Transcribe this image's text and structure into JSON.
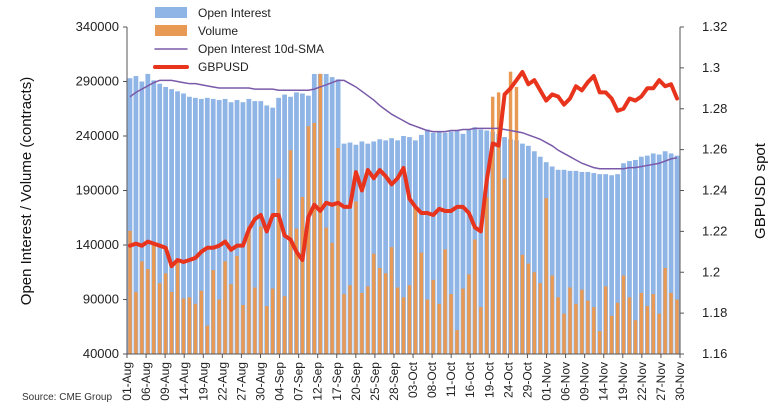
{
  "chart_data": {
    "type": "bar",
    "source": "Source: CME Group",
    "y_left_label": "Open Interest / Volume (contracts)",
    "y_right_label": "GBPUSD spot",
    "y_left_range": [
      40000,
      340000
    ],
    "y_left_ticks": [
      "340000",
      "290000",
      "240000",
      "190000",
      "140000",
      "90000",
      "40000"
    ],
    "y_right_range": [
      1.16,
      1.32
    ],
    "y_right_ticks": [
      "1.32",
      "1.3",
      "1.28",
      "1.26",
      "1.24",
      "1.22",
      "1.2",
      "1.18",
      "1.16"
    ],
    "x_tick_labels": [
      "01-Aug",
      "06-Aug",
      "09-Aug",
      "14-Aug",
      "19-Aug",
      "22-Aug",
      "27-Aug",
      "30-Aug",
      "04-Sep",
      "07-Sep",
      "12-Sep",
      "17-Sep",
      "20-Sep",
      "25-Sep",
      "28-Sep",
      "03-Oct",
      "08-Oct",
      "11-Oct",
      "16-Oct",
      "19-Oct",
      "24-Oct",
      "29-Oct",
      "01-Nov",
      "06-Nov",
      "09-Nov",
      "14-Nov",
      "19-Nov",
      "22-Nov",
      "27-Nov",
      "30-Nov"
    ],
    "legend": [
      "Open Interest",
      "Volume",
      "Open Interest 10d-SMA",
      "GBPUSD"
    ],
    "colors": {
      "open_interest": "#8fb4e6",
      "volume": "#e89a55",
      "sma": "#7a5aa8",
      "gbpusd": "#e8341c"
    },
    "series": [
      {
        "name": "Open Interest",
        "kind": "bar",
        "values": [
          293000,
          295000,
          290000,
          297000,
          291000,
          288000,
          285000,
          283000,
          281000,
          279000,
          276000,
          275000,
          274000,
          275000,
          274000,
          273000,
          274000,
          271000,
          273000,
          271000,
          274000,
          272000,
          272000,
          268000,
          266000,
          275000,
          278000,
          276000,
          280000,
          279000,
          277000,
          297000,
          297000,
          297000,
          294000,
          292000,
          233000,
          234000,
          232000,
          235000,
          233000,
          235000,
          237000,
          236000,
          238000,
          236000,
          240000,
          239000,
          236000,
          241000,
          246000,
          243000,
          244000,
          243000,
          244000,
          245000,
          242000,
          246000,
          248000,
          246000,
          245000,
          244000,
          242000,
          239000,
          237000,
          236000,
          233000,
          231000,
          226000,
          221000,
          216000,
          212000,
          209000,
          209000,
          208000,
          208000,
          207000,
          207000,
          206000,
          205000,
          205000,
          204000,
          205000,
          215000,
          217000,
          218000,
          221000,
          222000,
          224000,
          223000,
          226000,
          224000,
          222000
        ]
      },
      {
        "name": "Volume",
        "kind": "bar",
        "values": [
          153000,
          97000,
          125000,
          118000,
          141000,
          105000,
          114000,
          97000,
          124000,
          91000,
          92000,
          86000,
          98000,
          66000,
          117000,
          90000,
          125000,
          104000,
          130000,
          85000,
          157000,
          101000,
          157000,
          84000,
          100000,
          201000,
          93000,
          227000,
          155000,
          184000,
          249000,
          252000,
          298000,
          156000,
          142000,
          229000,
          95000,
          103000,
          180000,
          96000,
          102000,
          132000,
          119000,
          114000,
          138000,
          101000,
          92000,
          103000,
          175000,
          133000,
          90000,
          108000,
          86000,
          136000,
          95000,
          62000,
          100000,
          113000,
          145000,
          83000,
          184000,
          276000,
          280000,
          201000,
          299000,
          285000,
          131000,
          123000,
          115000,
          105000,
          183000,
          112000,
          92000,
          77000,
          101000,
          86000,
          99000,
          89000,
          83000,
          61000,
          102000,
          75000,
          87000,
          112000,
          92000,
          71000,
          96000,
          84000,
          95000,
          77000,
          119000,
          96000,
          90000
        ]
      },
      {
        "name": "Open Interest 10d-SMA",
        "kind": "line",
        "values": [
          276000,
          280000,
          283000,
          286000,
          289000,
          291000,
          291000,
          291000,
          290000,
          289000,
          288000,
          288000,
          287000,
          286000,
          285000,
          284000,
          284000,
          284000,
          284000,
          284000,
          284000,
          283000,
          283000,
          283000,
          283000,
          282000,
          282000,
          282000,
          282000,
          282000,
          282000,
          283000,
          285000,
          287000,
          289000,
          291000,
          291000,
          288000,
          285000,
          281000,
          277000,
          273000,
          268000,
          264000,
          260000,
          257000,
          254000,
          251000,
          249000,
          247000,
          245000,
          244000,
          244000,
          244000,
          245000,
          245000,
          246000,
          246000,
          247000,
          247000,
          247000,
          247000,
          247000,
          246000,
          245000,
          244000,
          243000,
          241000,
          239000,
          237000,
          234000,
          231000,
          227000,
          224000,
          221000,
          218000,
          215000,
          213000,
          211000,
          210000,
          210000,
          210000,
          210000,
          210000,
          211000,
          211000,
          212000,
          213000,
          214000,
          215000,
          217000,
          219000,
          220000
        ]
      },
      {
        "name": "GBPUSD",
        "kind": "line",
        "values": [
          1.213,
          1.214,
          1.213,
          1.215,
          1.214,
          1.213,
          1.212,
          1.203,
          1.206,
          1.205,
          1.206,
          1.207,
          1.21,
          1.212,
          1.212,
          1.213,
          1.215,
          1.211,
          1.213,
          1.213,
          1.221,
          1.226,
          1.228,
          1.22,
          1.228,
          1.228,
          1.218,
          1.216,
          1.21,
          1.206,
          1.227,
          1.233,
          1.23,
          1.234,
          1.233,
          1.234,
          1.232,
          1.232,
          1.249,
          1.24,
          1.25,
          1.246,
          1.25,
          1.247,
          1.243,
          1.246,
          1.251,
          1.236,
          1.232,
          1.229,
          1.229,
          1.228,
          1.231,
          1.23,
          1.23,
          1.232,
          1.232,
          1.229,
          1.222,
          1.22,
          1.245,
          1.263,
          1.262,
          1.287,
          1.29,
          1.294,
          1.298,
          1.292,
          1.294,
          1.289,
          1.284,
          1.287,
          1.286,
          1.282,
          1.285,
          1.291,
          1.289,
          1.293,
          1.296,
          1.288,
          1.288,
          1.285,
          1.279,
          1.28,
          1.285,
          1.284,
          1.286,
          1.29,
          1.29,
          1.294,
          1.291,
          1.292,
          1.285
        ]
      }
    ]
  }
}
